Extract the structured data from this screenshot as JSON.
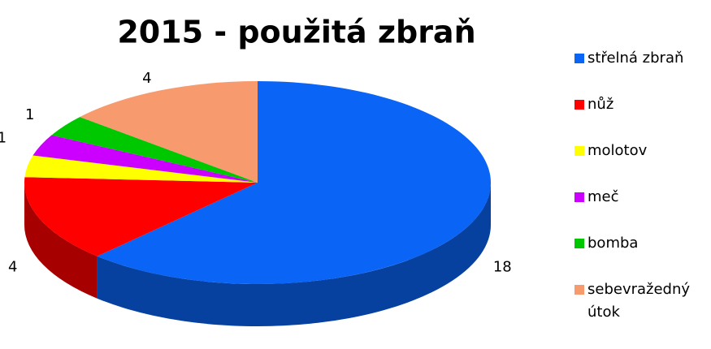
{
  "chart_data": {
    "type": "pie",
    "title": "2015 - použitá zbraň",
    "categories": [
      "střelná zbraň",
      "nůž",
      "molotov",
      "meč",
      "bomba",
      "sebevražedný útok"
    ],
    "values": [
      18,
      4,
      1,
      1,
      1,
      4
    ],
    "colors": [
      "#0a64f5",
      "#ff0000",
      "#ffff00",
      "#cc00ff",
      "#00c800",
      "#f79a6e"
    ],
    "legend": "right"
  }
}
